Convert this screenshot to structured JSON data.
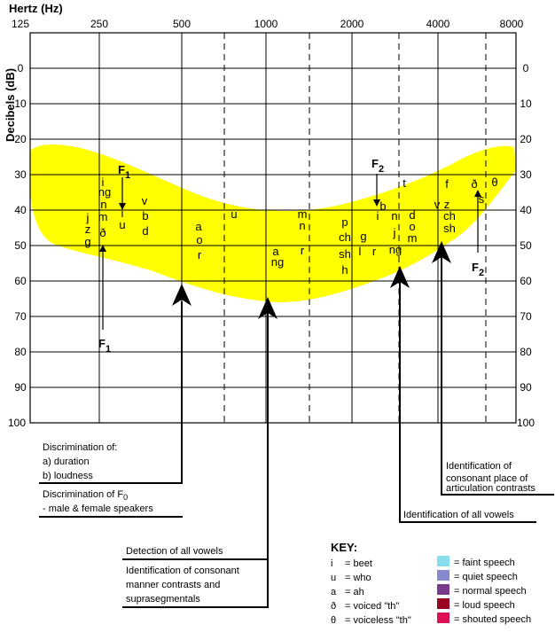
{
  "axes": {
    "x_title": "Hertz (Hz)",
    "y_title": "Decibels (dB)",
    "freq_labels": [
      "125",
      "250",
      "500",
      "1000",
      "2000",
      "4000",
      "8000"
    ],
    "db_labels": [
      "0",
      "10",
      "20",
      "30",
      "40",
      "50",
      "60",
      "70",
      "80",
      "90",
      "100"
    ],
    "db_colors": {
      "30": "#66cccc",
      "40": "#6666aa",
      "50": "#7a3a7a",
      "60": "#8b1a1a",
      "70": "#cc1144"
    }
  },
  "banana_color": "#ffff00",
  "phonemes": [
    {
      "text": "i"
    },
    {
      "text": "ng"
    },
    {
      "text": "n"
    },
    {
      "text": "m"
    },
    {
      "text": "j"
    },
    {
      "text": "z"
    },
    {
      "text": "g"
    },
    {
      "text": "ð"
    },
    {
      "text": "i"
    },
    {
      "text": "u"
    },
    {
      "text": "v"
    },
    {
      "text": "b"
    },
    {
      "text": "d"
    },
    {
      "text": "a"
    },
    {
      "text": "o"
    },
    {
      "text": "r"
    },
    {
      "text": "u"
    },
    {
      "text": "a"
    },
    {
      "text": "ng"
    },
    {
      "text": "m"
    },
    {
      "text": "n"
    },
    {
      "text": "r"
    },
    {
      "text": "p"
    },
    {
      "text": "ch"
    },
    {
      "text": "sh"
    },
    {
      "text": "h"
    },
    {
      "text": "g"
    },
    {
      "text": "l"
    },
    {
      "text": "r"
    },
    {
      "text": "b"
    },
    {
      "text": "i"
    },
    {
      "text": "n"
    },
    {
      "text": "j"
    },
    {
      "text": "ng"
    },
    {
      "text": "t"
    },
    {
      "text": "d"
    },
    {
      "text": "o"
    },
    {
      "text": "m"
    },
    {
      "text": "f"
    },
    {
      "text": "v"
    },
    {
      "text": "z"
    },
    {
      "text": "ch"
    },
    {
      "text": "sh"
    },
    {
      "text": "ð"
    },
    {
      "text": "s"
    },
    {
      "text": "θ"
    }
  ],
  "formants": {
    "f1_top": {
      "main": "F",
      "sub": "1"
    },
    "f1_bottom": {
      "main": "F",
      "sub": "1"
    },
    "f2_top": {
      "main": "F",
      "sub": "2"
    },
    "f2_bottom": {
      "main": "F",
      "sub": "2"
    }
  },
  "annotations": {
    "discrimination_title": "Discrimination of:",
    "duration": "a) duration",
    "loudness": "b) loudness",
    "f0_prefix": "Discrimination of F",
    "f0_sub": "0",
    "f0_line2": "- male & female speakers",
    "detection_vowels": "Detection of all vowels",
    "manner_line1": "Identification of consonant",
    "manner_line2": "manner contrasts and",
    "manner_line3": "suprasegmentals",
    "vowels_ident": "Identification of all vowels",
    "place_line1": "Identification of",
    "place_line2": "consonant place of",
    "place_line3": "articulation contrasts"
  },
  "key": {
    "title": "KEY:",
    "symbols": [
      {
        "sym": "i",
        "desc": "= beet"
      },
      {
        "sym": "u",
        "desc": "= who"
      },
      {
        "sym": "a",
        "desc": "= ah"
      },
      {
        "sym": "ð",
        "desc": "= voiced \"th\""
      },
      {
        "sym": "θ",
        "desc": "= voiceless \"th\""
      }
    ],
    "levels": [
      {
        "color": "#88ddee",
        "desc": "= faint speech"
      },
      {
        "color": "#8888cc",
        "desc": "= quiet speech"
      },
      {
        "color": "#7a3a8a",
        "desc": "= normal speech"
      },
      {
        "color": "#990022",
        "desc": "= loud speech"
      },
      {
        "color": "#dd1155",
        "desc": "= shouted speech"
      }
    ]
  }
}
